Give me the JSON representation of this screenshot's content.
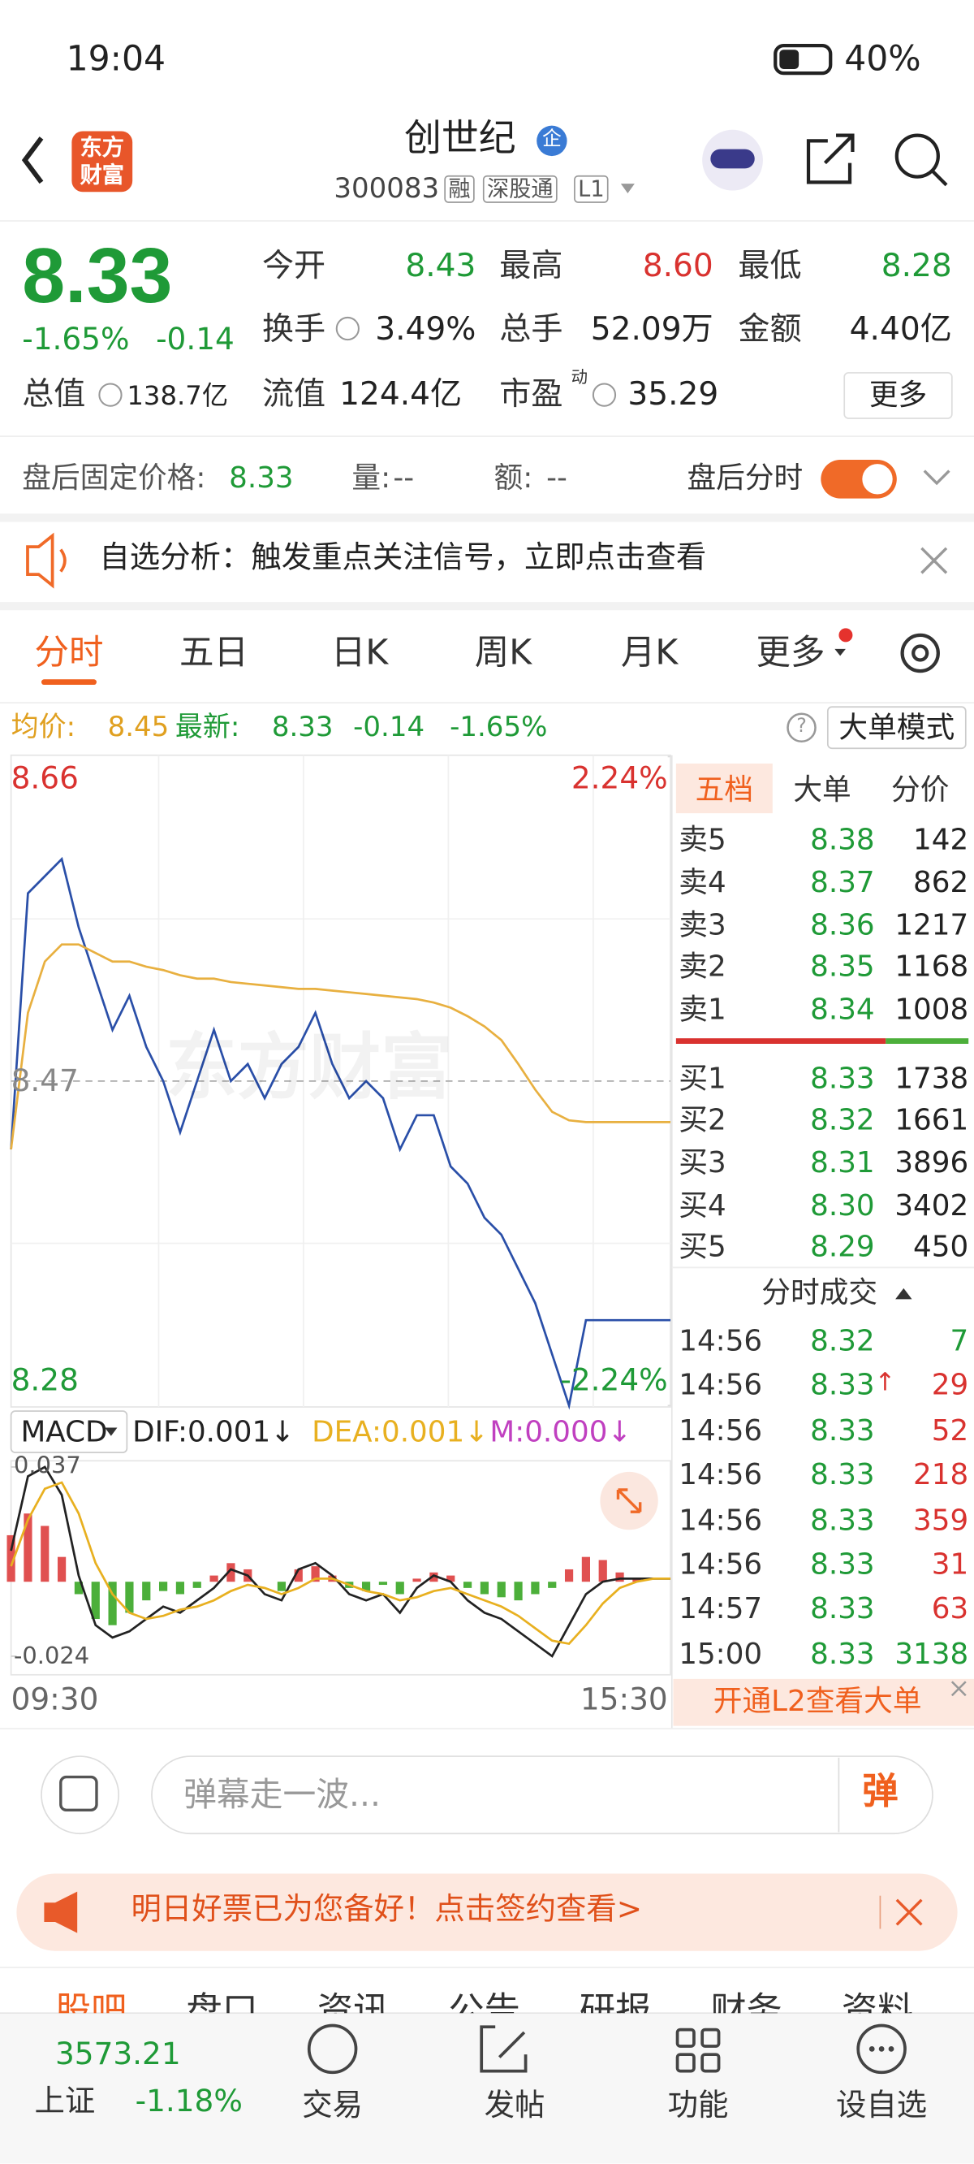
{
  "status": {
    "time": "19:04",
    "battery": "40%"
  },
  "header": {
    "logo": [
      "东方",
      "财富"
    ],
    "title": "创世纪",
    "badge": "企",
    "code": "300083",
    "tags": [
      "融",
      "深股通",
      "L1"
    ]
  },
  "quote": {
    "price": "8.33",
    "change_pct": "-1.65%",
    "change": "-0.14",
    "more": "更多",
    "fields": [
      {
        "label": "今开",
        "value": "8.43",
        "color": "#1f9a37"
      },
      {
        "label": "最高",
        "value": "8.60",
        "color": "#d9322f"
      },
      {
        "label": "最低",
        "value": "8.28",
        "color": "#1f9a37"
      },
      {
        "label": "换手",
        "value": "3.49%",
        "color": "#222"
      },
      {
        "label": "总手",
        "value": "52.09万",
        "color": "#222"
      },
      {
        "label": "金额",
        "value": "4.40亿",
        "color": "#222"
      },
      {
        "label": "总值",
        "value": "138.7亿",
        "color": "#222"
      },
      {
        "label": "流值",
        "value": "124.4亿",
        "color": "#222"
      },
      {
        "label": "市盈",
        "sup": "动",
        "value": "35.29",
        "color": "#222"
      }
    ]
  },
  "after_hours": {
    "label": "盘后固定价格:",
    "value": "8.33",
    "vol_label": "量:",
    "vol": "--",
    "amt_label": "额:",
    "amt": "--",
    "toggle": "盘后分时"
  },
  "banner": "自选分析：触发重点关注信号，立即点击查看",
  "tabs": [
    "分时",
    "五日",
    "日K",
    "周K",
    "月K",
    "更多"
  ],
  "info": {
    "avg_label": "均价:",
    "avg": "8.45",
    "latest_label": "最新:",
    "latest": "8.33",
    "change": "-0.14",
    "pct": "-1.65%",
    "help": "?",
    "mode": "大单模式"
  },
  "chart_data": [
    {
      "type": "line",
      "ylim": [
        8.28,
        8.66
      ],
      "yticks": [
        8.28,
        8.47,
        8.66
      ],
      "pct_ticks": [
        {
          "value": 8.66,
          "label": "2.24%"
        },
        {
          "value": 8.28,
          "label": "-2.24%"
        }
      ],
      "gridlines": [
        8.375,
        8.565
      ],
      "watermark": "东方财富",
      "xlabels": [
        "09:30",
        "15:30"
      ],
      "series": [
        {
          "name": "price",
          "color": "#2a4fa8",
          "values": [
            8.43,
            8.58,
            8.59,
            8.6,
            8.56,
            8.53,
            8.5,
            8.52,
            8.49,
            8.47,
            8.44,
            8.47,
            8.5,
            8.47,
            8.48,
            8.46,
            8.48,
            8.49,
            8.51,
            8.48,
            8.46,
            8.47,
            8.46,
            8.43,
            8.45,
            8.45,
            8.42,
            8.41,
            8.39,
            8.38,
            8.36,
            8.34,
            8.31,
            8.28,
            8.33,
            8.33,
            8.33,
            8.33,
            8.33,
            8.33
          ]
        },
        {
          "name": "avg",
          "color": "#e8b040",
          "values": [
            8.43,
            8.51,
            8.54,
            8.55,
            8.55,
            8.545,
            8.54,
            8.54,
            8.537,
            8.535,
            8.532,
            8.53,
            8.53,
            8.528,
            8.527,
            8.526,
            8.525,
            8.524,
            8.524,
            8.523,
            8.522,
            8.521,
            8.52,
            8.519,
            8.518,
            8.516,
            8.513,
            8.508,
            8.502,
            8.494,
            8.48,
            8.465,
            8.452,
            8.447,
            8.446,
            8.446,
            8.446,
            8.446,
            8.446,
            8.446
          ]
        }
      ]
    },
    {
      "type": "macd",
      "label": "MACD",
      "dif_label": "DIF:0.001↓",
      "dea_label": "DEA:0.001↓",
      "m_label": "M:0.000↓",
      "ylim": [
        -0.03,
        0.039
      ],
      "yticks": [
        -0.024,
        0.037
      ],
      "up_color": "#e05050",
      "down_color": "#4caf3a",
      "hist": [
        0.015,
        0.022,
        0.018,
        0.008,
        -0.004,
        -0.012,
        -0.014,
        -0.01,
        -0.006,
        -0.003,
        -0.004,
        -0.002,
        0.002,
        0.006,
        0.004,
        0,
        -0.003,
        0.004,
        0.005,
        0.002,
        -0.002,
        -0.003,
        -0.001,
        -0.004,
        0.001,
        0.003,
        0.002,
        -0.002,
        -0.004,
        -0.005,
        -0.006,
        -0.004,
        -0.002,
        0.004,
        0.008,
        0.007,
        0.003,
        0.001,
        0,
        0
      ],
      "series": [
        {
          "name": "DIF",
          "color": "#222222",
          "values": [
            0.01,
            0.034,
            0.037,
            0.028,
            0.002,
            -0.014,
            -0.018,
            -0.016,
            -0.012,
            -0.008,
            -0.01,
            -0.006,
            -0.002,
            0.004,
            0.002,
            -0.004,
            -0.006,
            0.004,
            0.006,
            0.002,
            -0.004,
            -0.006,
            -0.004,
            -0.01,
            -0.002,
            0.002,
            0,
            -0.006,
            -0.01,
            -0.012,
            -0.016,
            -0.02,
            -0.024,
            -0.014,
            -0.004,
            0,
            0.001,
            0.001,
            0.001,
            0.001
          ]
        },
        {
          "name": "DEA",
          "color": "#e8b020",
          "values": [
            0.005,
            0.02,
            0.03,
            0.032,
            0.022,
            0.006,
            -0.004,
            -0.01,
            -0.012,
            -0.011,
            -0.009,
            -0.008,
            -0.006,
            -0.003,
            -0.001,
            -0.002,
            -0.004,
            -0.002,
            0.001,
            0.001,
            -0.001,
            -0.003,
            -0.004,
            -0.006,
            -0.005,
            -0.003,
            -0.002,
            -0.004,
            -0.006,
            -0.008,
            -0.011,
            -0.015,
            -0.019,
            -0.02,
            -0.014,
            -0.007,
            -0.002,
            0,
            0.001,
            0.001
          ]
        }
      ]
    }
  ],
  "orderbook": {
    "tabs": [
      "五档",
      "大单",
      "分价"
    ],
    "asks": [
      {
        "label": "卖5",
        "price": "8.38",
        "vol": "142"
      },
      {
        "label": "卖4",
        "price": "8.37",
        "vol": "862"
      },
      {
        "label": "卖3",
        "price": "8.36",
        "vol": "1217"
      },
      {
        "label": "卖2",
        "price": "8.35",
        "vol": "1168"
      },
      {
        "label": "卖1",
        "price": "8.34",
        "vol": "1008"
      }
    ],
    "bids": [
      {
        "label": "买1",
        "price": "8.33",
        "vol": "1738"
      },
      {
        "label": "买2",
        "price": "8.32",
        "vol": "1661"
      },
      {
        "label": "买3",
        "price": "8.31",
        "vol": "3896"
      },
      {
        "label": "买4",
        "price": "8.30",
        "vol": "3402"
      },
      {
        "label": "买5",
        "price": "8.29",
        "vol": "450"
      }
    ],
    "trades_title": "分时成交",
    "trades": [
      {
        "time": "14:56",
        "price": "8.32",
        "vol": "7",
        "color": "#1f9a37"
      },
      {
        "time": "14:56",
        "price": "8.33",
        "arrow": "↑",
        "vol": "29",
        "color": "#d9322f"
      },
      {
        "time": "14:56",
        "price": "8.33",
        "vol": "52",
        "color": "#d9322f"
      },
      {
        "time": "14:56",
        "price": "8.33",
        "vol": "218",
        "color": "#d9322f"
      },
      {
        "time": "14:56",
        "price": "8.33",
        "vol": "359",
        "color": "#d9322f"
      },
      {
        "time": "14:56",
        "price": "8.33",
        "vol": "31",
        "color": "#d9322f"
      },
      {
        "time": "14:57",
        "price": "8.33",
        "vol": "63",
        "color": "#d9322f"
      },
      {
        "time": "15:00",
        "price": "8.33",
        "vol": "3138",
        "color": "#1f9a37"
      }
    ],
    "promo": "开通L2查看大单"
  },
  "comment": {
    "placeholder": "弹幕走一波...",
    "button": "弹"
  },
  "ad": "明日好票已为您备好！点击签约查看>",
  "subtabs": [
    "股吧",
    "盘口",
    "资讯",
    "公告",
    "研报",
    "财务",
    "资料"
  ],
  "nav": {
    "index_value": "3573.21",
    "index_name": "上证",
    "index_pct": "-1.18%",
    "items": [
      "交易",
      "发帖",
      "功能",
      "设自选"
    ]
  }
}
